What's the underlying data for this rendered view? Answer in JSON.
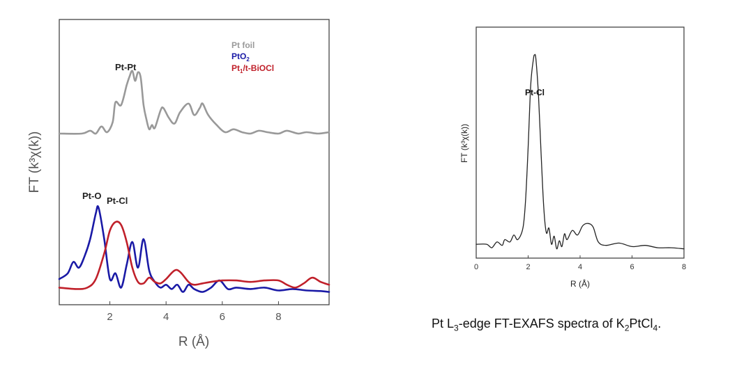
{
  "chart_data": [
    {
      "type": "line",
      "xlabel": "R (Å)",
      "ylabel": "FT (k³χ(k))",
      "xlim": [
        0.2,
        9.8
      ],
      "ylim": [
        0,
        10
      ],
      "xticks": [
        2,
        4,
        6,
        8
      ],
      "yticks_shown": false,
      "legend_position": "top-right",
      "annotations": [
        "Pt-Pt",
        "Pt-O",
        "Pt-Cl"
      ],
      "series": [
        {
          "name": "Pt foil",
          "legend_label": "Pt foil",
          "color": "#999999",
          "x": [
            0.2,
            1.0,
            1.3,
            1.5,
            1.7,
            1.9,
            2.1,
            2.2,
            2.4,
            2.6,
            2.7,
            2.8,
            2.9,
            3.0,
            3.1,
            3.2,
            3.3,
            3.4,
            3.5,
            3.6,
            3.8,
            3.9,
            4.1,
            4.3,
            4.5,
            4.8,
            5.0,
            5.2,
            5.3,
            5.5,
            5.8,
            6.1,
            6.4,
            6.7,
            7.0,
            7.3,
            7.6,
            8.0,
            8.3,
            8.7,
            9.0,
            9.4,
            9.8
          ],
          "y": [
            6.0,
            6.0,
            6.1,
            6.0,
            6.25,
            6.05,
            6.4,
            7.1,
            7.0,
            7.7,
            8.0,
            8.2,
            7.85,
            8.15,
            7.95,
            7.0,
            6.5,
            6.15,
            6.3,
            6.2,
            6.8,
            6.9,
            6.55,
            6.35,
            6.75,
            7.05,
            6.65,
            6.9,
            7.05,
            6.65,
            6.3,
            6.05,
            6.15,
            6.05,
            6.0,
            6.1,
            6.05,
            6.0,
            6.1,
            6.0,
            6.05,
            6.0,
            6.05
          ]
        },
        {
          "name": "PtO2",
          "legend_label": "PtO",
          "legend_subscript": "2",
          "color": "#1a1aa6",
          "x": [
            0.2,
            0.5,
            0.7,
            0.9,
            1.1,
            1.3,
            1.5,
            1.6,
            1.8,
            2.0,
            2.2,
            2.4,
            2.6,
            2.8,
            3.0,
            3.2,
            3.4,
            3.6,
            3.8,
            4.0,
            4.2,
            4.4,
            4.6,
            4.8,
            5.0,
            5.3,
            5.6,
            5.9,
            6.2,
            6.5,
            7.0,
            7.5,
            8.0,
            8.5,
            9.0,
            9.5,
            9.8
          ],
          "y": [
            0.9,
            1.1,
            1.5,
            1.3,
            1.7,
            2.3,
            3.2,
            3.4,
            2.3,
            0.9,
            1.1,
            0.6,
            1.4,
            2.2,
            1.3,
            2.3,
            1.2,
            0.8,
            0.6,
            0.7,
            0.55,
            0.7,
            0.45,
            0.7,
            0.55,
            0.45,
            0.6,
            0.85,
            0.55,
            0.6,
            0.55,
            0.6,
            0.5,
            0.55,
            0.5,
            0.48,
            0.45
          ]
        },
        {
          "name": "Pt1/t-BiOCl",
          "legend_label": "Pt",
          "legend_subscript": "1",
          "legend_suffix": "/t-BiOCl",
          "color": "#c0202a",
          "x": [
            0.2,
            0.8,
            1.2,
            1.5,
            1.8,
            2.0,
            2.2,
            2.4,
            2.6,
            2.8,
            3.0,
            3.2,
            3.4,
            3.6,
            3.8,
            4.0,
            4.3,
            4.5,
            4.8,
            5.0,
            5.3,
            5.6,
            6.0,
            6.5,
            7.0,
            7.5,
            8.0,
            8.3,
            8.6,
            8.9,
            9.2,
            9.5,
            9.8
          ],
          "y": [
            0.6,
            0.55,
            0.6,
            0.9,
            1.8,
            2.6,
            2.9,
            2.8,
            2.2,
            1.3,
            0.8,
            0.75,
            0.95,
            0.8,
            0.75,
            0.9,
            1.2,
            1.15,
            0.8,
            0.7,
            0.75,
            0.8,
            0.85,
            0.85,
            0.8,
            0.85,
            0.85,
            0.7,
            0.6,
            0.75,
            0.95,
            0.8,
            0.7
          ]
        }
      ]
    },
    {
      "type": "line",
      "xlabel": "R (Å)",
      "ylabel": "FT (k³χ(k))",
      "xlim": [
        0,
        8
      ],
      "ylim": [
        0,
        10
      ],
      "xticks": [
        0,
        2,
        4,
        6,
        8
      ],
      "yticks_shown": false,
      "annotations": [
        "Pt-Cl"
      ],
      "series": [
        {
          "name": "K2PtCl4",
          "color": "#222222",
          "x": [
            0,
            0.4,
            0.6,
            0.8,
            1.0,
            1.1,
            1.3,
            1.45,
            1.6,
            1.8,
            1.9,
            2.0,
            2.1,
            2.2,
            2.25,
            2.3,
            2.4,
            2.5,
            2.6,
            2.7,
            2.8,
            2.9,
            3.0,
            3.1,
            3.2,
            3.3,
            3.4,
            3.5,
            3.7,
            3.9,
            4.1,
            4.3,
            4.5,
            4.7,
            5.0,
            5.5,
            6.0,
            6.5,
            7.0,
            7.5,
            8.0
          ],
          "y": [
            0.6,
            0.6,
            0.45,
            0.7,
            0.55,
            0.8,
            0.7,
            1.0,
            0.8,
            1.3,
            2.5,
            4.8,
            7.5,
            8.6,
            8.8,
            8.6,
            7.0,
            4.5,
            2.2,
            1.1,
            1.3,
            0.6,
            0.95,
            0.4,
            0.75,
            0.5,
            1.05,
            0.8,
            1.2,
            1.0,
            1.4,
            1.5,
            1.35,
            0.7,
            0.55,
            0.65,
            0.5,
            0.55,
            0.45,
            0.45,
            0.4
          ]
        }
      ]
    }
  ],
  "caption": {
    "prefix": "Pt L",
    "edge_sub": "3",
    "middle": "-edge FT-EXAFS spectra of K",
    "k_sub": "2",
    "mid2": "PtCl",
    "cl_sub": "4",
    "end": "."
  }
}
